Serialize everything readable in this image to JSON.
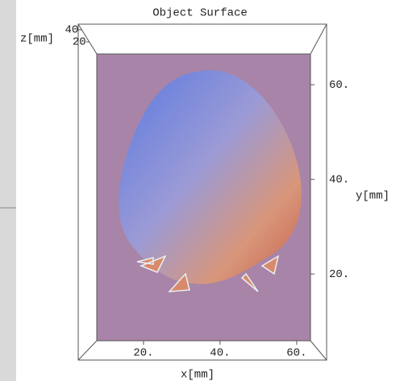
{
  "chart_data": {
    "type": "surface",
    "title": "Object Surface",
    "x_label": "x[mm]",
    "y_label": "y[mm]",
    "z_label": "z[mm]",
    "xlim": [
      7.8,
      63.6
    ],
    "xticks": [
      {
        "value": 20,
        "label": "20."
      },
      {
        "value": 40,
        "label": "40."
      },
      {
        "value": 60,
        "label": "60."
      }
    ],
    "ylim": [
      5.9,
      66.5
    ],
    "yticks": [
      {
        "value": 20,
        "label": "20."
      },
      {
        "value": 40,
        "label": "40."
      },
      {
        "value": 60,
        "label": "60."
      }
    ],
    "zlim": [
      0,
      49.3
    ],
    "zticks": [
      40,
      20
    ],
    "color": "#a884a8"
  }
}
